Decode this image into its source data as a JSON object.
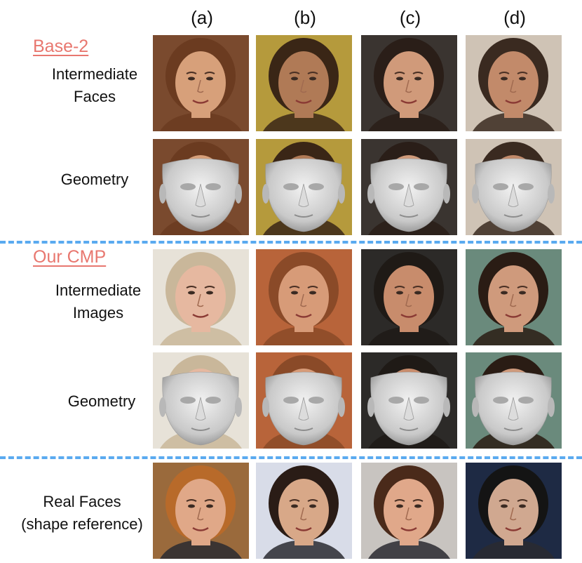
{
  "columns": [
    "(a)",
    "(b)",
    "(c)",
    "(d)"
  ],
  "sections": {
    "base": {
      "title": "Base-2",
      "row1_label": [
        "Intermediate",
        "Faces"
      ],
      "row2_label": "Geometry"
    },
    "ours": {
      "title": "Our CMP",
      "row1_label": [
        "Intermediate",
        "Images"
      ],
      "row2_label": "Geometry"
    },
    "real": {
      "label": [
        "Real Faces",
        "(shape reference)"
      ]
    }
  },
  "colors": {
    "title": "#e8776f",
    "divider": "#5aaaf0",
    "mesh": "#c9c9c9"
  },
  "images": {
    "base_faces": [
      {
        "bg": "#7a4a2e",
        "hair": "#6b3b20",
        "skin": "#d7a07a"
      },
      {
        "bg": "#b59a3c",
        "hair": "#3a2616",
        "skin": "#b07a56"
      },
      {
        "bg": "#3a3430",
        "hair": "#2a1e18",
        "skin": "#d09a7a"
      },
      {
        "bg": "#cfc3b5",
        "hair": "#3a2a20",
        "skin": "#c28a6a"
      }
    ],
    "ours_faces": [
      {
        "bg": "#e7e2d8",
        "hair": "#c9b79a",
        "skin": "#e6b8a0"
      },
      {
        "bg": "#b8643a",
        "hair": "#8a4a28",
        "skin": "#d79b78"
      },
      {
        "bg": "#2c2a28",
        "hair": "#1f1a16",
        "skin": "#c88c6c"
      },
      {
        "bg": "#6a8a7c",
        "hair": "#2a1c14",
        "skin": "#cf9a7c"
      }
    ],
    "real_faces": [
      {
        "bg": "#9a6a3c",
        "hair": "#b86a2a",
        "skin": "#e0a888"
      },
      {
        "bg": "#d8dce8",
        "hair": "#2a1c16",
        "skin": "#d8a888"
      },
      {
        "bg": "#c8c4c0",
        "hair": "#4a2a1a",
        "skin": "#e0a88a"
      },
      {
        "bg": "#1e2a44",
        "hair": "#141414",
        "skin": "#d0a890"
      }
    ]
  }
}
